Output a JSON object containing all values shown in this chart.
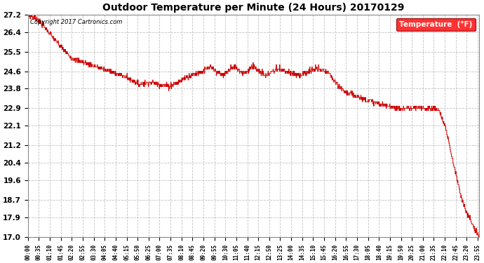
{
  "title": "Outdoor Temperature per Minute (24 Hours) 20170129",
  "copyright_text": "Copyright 2017 Cartronics.com",
  "legend_label": "Temperature  (°F)",
  "line_color": "#cc0000",
  "bg_color": "#ffffff",
  "grid_color": "#bbbbbb",
  "ylim": [
    17.0,
    27.2
  ],
  "yticks": [
    17.0,
    17.9,
    18.7,
    19.6,
    20.4,
    21.2,
    22.1,
    22.9,
    23.8,
    24.6,
    25.5,
    26.4,
    27.2
  ],
  "xtick_step_minutes": 35,
  "total_minutes": 1440,
  "key_points": [
    [
      0,
      27.2
    ],
    [
      30,
      27.0
    ],
    [
      60,
      26.5
    ],
    [
      100,
      25.8
    ],
    [
      140,
      25.2
    ],
    [
      180,
      25.0
    ],
    [
      220,
      24.8
    ],
    [
      260,
      24.6
    ],
    [
      300,
      24.4
    ],
    [
      330,
      24.2
    ],
    [
      360,
      24.0
    ],
    [
      390,
      24.1
    ],
    [
      420,
      24.0
    ],
    [
      450,
      23.9
    ],
    [
      480,
      24.1
    ],
    [
      500,
      24.3
    ],
    [
      520,
      24.4
    ],
    [
      540,
      24.5
    ],
    [
      560,
      24.6
    ],
    [
      570,
      24.7
    ],
    [
      580,
      24.8
    ],
    [
      590,
      24.7
    ],
    [
      600,
      24.6
    ],
    [
      610,
      24.5
    ],
    [
      620,
      24.4
    ],
    [
      630,
      24.5
    ],
    [
      640,
      24.6
    ],
    [
      650,
      24.7
    ],
    [
      660,
      24.8
    ],
    [
      670,
      24.7
    ],
    [
      680,
      24.6
    ],
    [
      690,
      24.5
    ],
    [
      700,
      24.6
    ],
    [
      710,
      24.7
    ],
    [
      720,
      24.8
    ],
    [
      730,
      24.7
    ],
    [
      740,
      24.6
    ],
    [
      750,
      24.5
    ],
    [
      760,
      24.4
    ],
    [
      770,
      24.5
    ],
    [
      780,
      24.6
    ],
    [
      800,
      24.7
    ],
    [
      820,
      24.6
    ],
    [
      840,
      24.5
    ],
    [
      860,
      24.4
    ],
    [
      880,
      24.5
    ],
    [
      900,
      24.6
    ],
    [
      920,
      24.7
    ],
    [
      940,
      24.6
    ],
    [
      960,
      24.5
    ],
    [
      970,
      24.3
    ],
    [
      980,
      24.1
    ],
    [
      990,
      23.9
    ],
    [
      1000,
      23.8
    ],
    [
      1020,
      23.6
    ],
    [
      1040,
      23.5
    ],
    [
      1060,
      23.4
    ],
    [
      1080,
      23.3
    ],
    [
      1100,
      23.2
    ],
    [
      1120,
      23.1
    ],
    [
      1140,
      23.0
    ],
    [
      1160,
      23.0
    ],
    [
      1180,
      22.9
    ],
    [
      1200,
      22.9
    ],
    [
      1220,
      22.9
    ],
    [
      1240,
      22.9
    ],
    [
      1260,
      22.9
    ],
    [
      1280,
      22.9
    ],
    [
      1300,
      22.9
    ],
    [
      1310,
      22.8
    ],
    [
      1320,
      22.5
    ],
    [
      1330,
      22.1
    ],
    [
      1340,
      21.5
    ],
    [
      1350,
      20.8
    ],
    [
      1360,
      20.2
    ],
    [
      1370,
      19.6
    ],
    [
      1380,
      19.0
    ],
    [
      1390,
      18.5
    ],
    [
      1400,
      18.1
    ],
    [
      1410,
      17.8
    ],
    [
      1420,
      17.5
    ],
    [
      1430,
      17.2
    ],
    [
      1439,
      17.0
    ]
  ]
}
